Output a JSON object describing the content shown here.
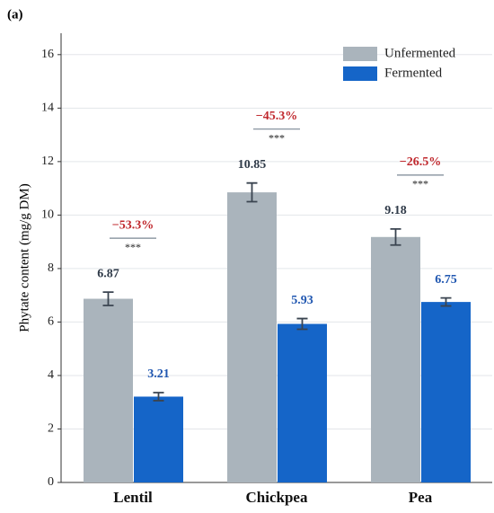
{
  "chart_data": {
    "type": "bar",
    "panel_label": "(a)",
    "ylabel": "Phytate content (mg/g DM)",
    "categories": [
      "Lentil",
      "Chickpea",
      "Pea"
    ],
    "series": [
      {
        "name": "Unfermented",
        "color": "#aab4bc",
        "label_color": "#2f3a48",
        "values": [
          6.87,
          10.85,
          9.18
        ],
        "errors": [
          0.25,
          0.35,
          0.3
        ]
      },
      {
        "name": "Fermented",
        "color": "#1565c8",
        "label_color": "#1f56b0",
        "values": [
          3.21,
          5.93,
          6.75
        ],
        "errors": [
          0.15,
          0.2,
          0.15
        ]
      }
    ],
    "annotations": [
      {
        "change": "−53.3%",
        "significance": "***"
      },
      {
        "change": "−45.3%",
        "significance": "***"
      },
      {
        "change": "−26.5%",
        "significance": "***"
      }
    ],
    "ylim": [
      0,
      16.8
    ],
    "yticks": [
      0,
      2,
      4,
      6,
      8,
      10,
      12,
      14,
      16
    ],
    "grid": true,
    "legend": "upper right"
  }
}
